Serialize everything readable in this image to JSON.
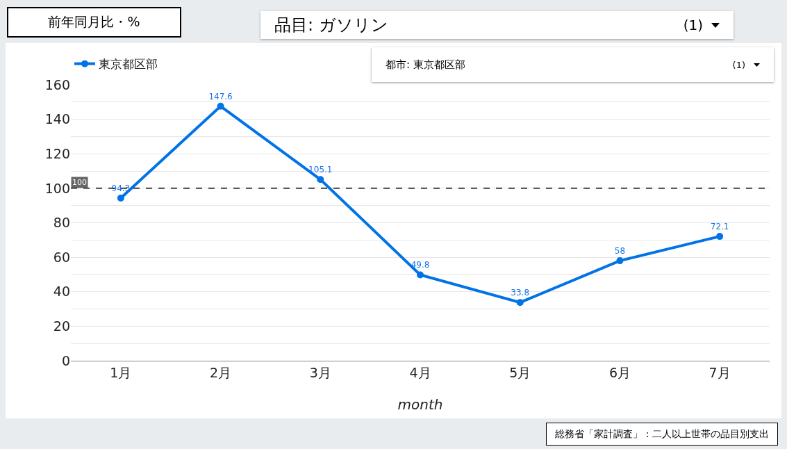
{
  "chart_data": {
    "type": "line",
    "title": "前年同月比・%",
    "xlabel": "month",
    "categories": [
      "1月",
      "2月",
      "3月",
      "4月",
      "5月",
      "6月",
      "7月"
    ],
    "series": [
      {
        "name": "東京都区部",
        "color": "#0073e6",
        "values": [
          94.3,
          147.6,
          105.1,
          49.8,
          33.8,
          58,
          72.1
        ]
      }
    ],
    "ylim": [
      0,
      160
    ],
    "yticks": [
      0,
      {
        "value": 10,
        "label": null
      },
      20,
      {
        "value": 30,
        "label": null
      },
      40,
      {
        "value": 50,
        "label": null
      },
      60,
      {
        "value": 70,
        "label": null
      },
      80,
      {
        "value": 90,
        "label": null
      },
      100,
      {
        "value": 110,
        "label": null
      },
      120,
      {
        "value": 130,
        "label": null
      },
      140,
      {
        "value": 150,
        "label": null
      },
      160
    ],
    "ref_lines": [
      {
        "axis": "y",
        "value": 100,
        "label": "100",
        "color": "#000000",
        "line_style": "dashed"
      }
    ],
    "annotations": [
      "品目: ガソリン",
      "(1)",
      "都市: 東京都区部",
      "(1)",
      "総務省「家計調査」 : 二人以上世帯の品目別支出"
    ],
    "data_labels": true,
    "grid": "y",
    "legend": "top left",
    "marker": "circle",
    "line_style": "solid"
  }
}
